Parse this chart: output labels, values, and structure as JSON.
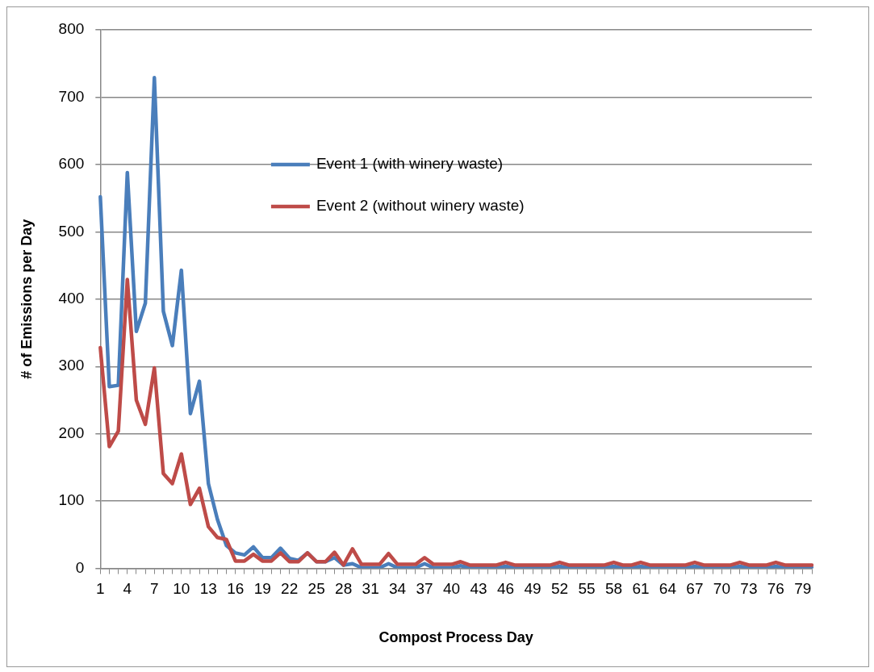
{
  "chart_data": {
    "type": "line",
    "xlabel": "Compost Process Day",
    "ylabel": "# of Emissions per Day",
    "categories": [
      "1",
      null,
      null,
      "4",
      null,
      null,
      "7",
      null,
      null,
      "10",
      null,
      null,
      "13",
      null,
      null,
      "16",
      null,
      null,
      "19",
      null,
      null,
      "22",
      null,
      null,
      "25",
      null,
      null,
      "28",
      null,
      null,
      "31",
      null,
      null,
      "34",
      null,
      null,
      "37",
      null,
      null,
      "40",
      null,
      null,
      "43",
      null,
      null,
      "46",
      null,
      null,
      "49",
      null,
      null,
      "52",
      null,
      null,
      "55",
      null,
      null,
      "58",
      null,
      null,
      "61",
      null,
      null,
      "64",
      null,
      null,
      "67",
      null,
      null,
      "70",
      null,
      null,
      "73",
      null,
      null,
      "76",
      null,
      null,
      "79",
      null
    ],
    "series": [
      {
        "name": "Event 1 (with winery waste)",
        "color": "#4a7ebb",
        "values": [
          552,
          270,
          272,
          588,
          352,
          394,
          729,
          382,
          331,
          443,
          230,
          278,
          126,
          73,
          34,
          23,
          20,
          32,
          16,
          16,
          30,
          15,
          12,
          23,
          10,
          10,
          16,
          5,
          7,
          1,
          1,
          1,
          7,
          1,
          1,
          1,
          7,
          1,
          1,
          1,
          4,
          1,
          1,
          1,
          1,
          3,
          1,
          1,
          1,
          1,
          1,
          3,
          1,
          1,
          1,
          1,
          1,
          3,
          1,
          1,
          3,
          1,
          1,
          1,
          1,
          1,
          3,
          1,
          1,
          1,
          1,
          3,
          1,
          1,
          1,
          3,
          1,
          1,
          1,
          1
        ]
      },
      {
        "name": "Event 2 (without winery waste)",
        "color": "#be4b48",
        "values": [
          328,
          181,
          204,
          429,
          250,
          214,
          298,
          141,
          126,
          170,
          95,
          119,
          62,
          46,
          43,
          11,
          11,
          21,
          11,
          11,
          23,
          10,
          10,
          23,
          10,
          10,
          24,
          5,
          29,
          6,
          6,
          6,
          22,
          6,
          6,
          6,
          16,
          6,
          6,
          6,
          10,
          5,
          5,
          5,
          5,
          9,
          5,
          5,
          5,
          5,
          5,
          9,
          5,
          5,
          5,
          5,
          5,
          9,
          5,
          5,
          9,
          5,
          5,
          5,
          5,
          5,
          9,
          5,
          5,
          5,
          5,
          9,
          5,
          5,
          5,
          9,
          5,
          5,
          5,
          5
        ]
      }
    ],
    "ylim": [
      0,
      800
    ],
    "yticks": [
      0,
      100,
      200,
      300,
      400,
      500,
      600,
      700,
      800
    ],
    "grid": "y",
    "legend": "top",
    "marker": "none",
    "line_style": "solid"
  }
}
